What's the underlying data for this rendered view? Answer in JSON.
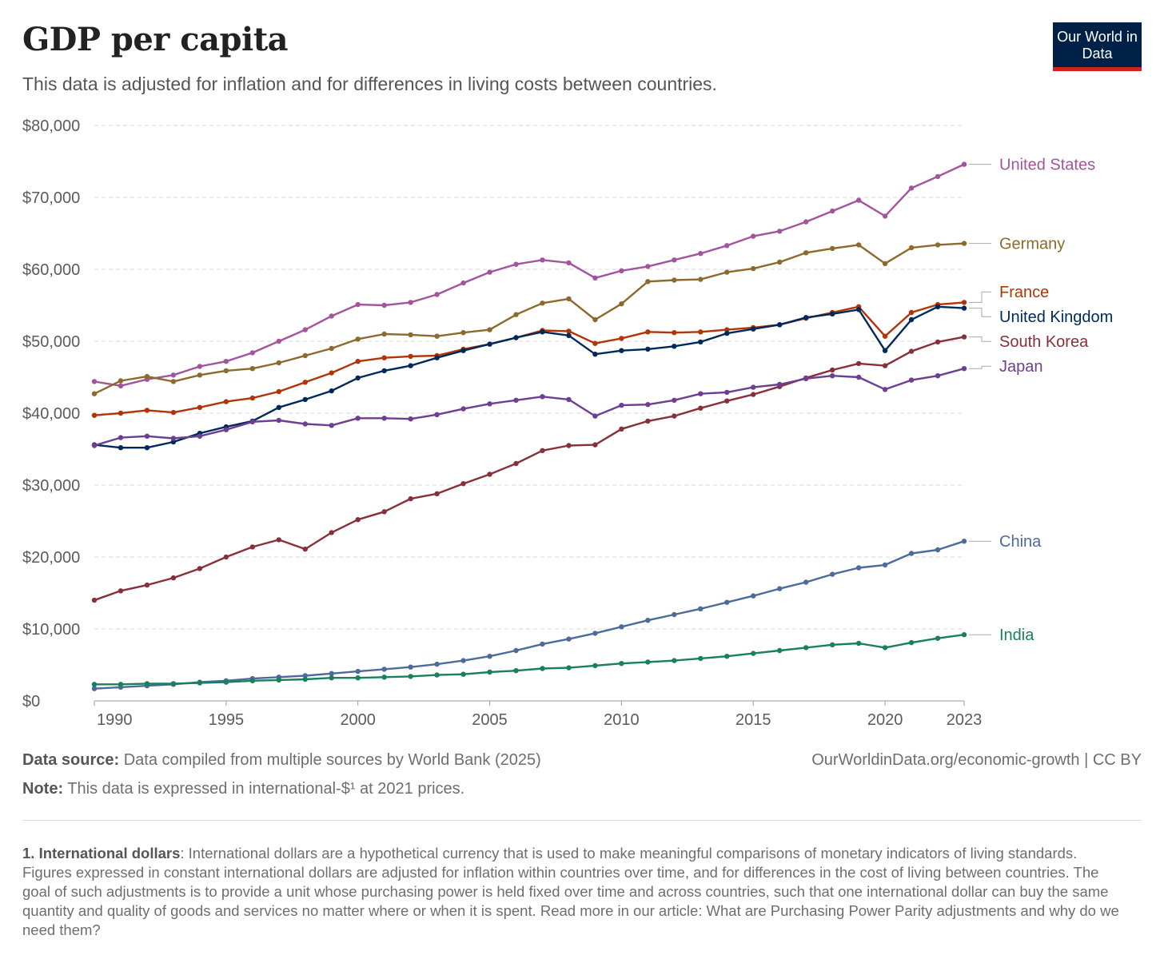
{
  "header": {
    "title": "GDP per capita",
    "subtitle": "This data is adjusted for inflation and for differences in living costs between countries.",
    "logo": "Our World in Data"
  },
  "footer": {
    "source_label": "Data source:",
    "source_text": " Data compiled from multiple sources by World Bank (2025)",
    "credit": "OurWorldinData.org/economic-growth | CC BY",
    "note_label": "Note:",
    "note_text": " This data is expressed in international-$¹ at 2021 prices.",
    "footnote_label": "1. International dollars",
    "footnote_text": ": International dollars are a hypothetical currency that is used to make meaningful comparisons of monetary indicators of living standards. Figures expressed in constant international dollars are adjusted for inflation within countries over time, and for differences in the cost of living between countries. The goal of such adjustments is to provide a unit whose purchasing power is held fixed over time and across countries, such that one international dollar can buy the same quantity and quality of goods and services no matter where or when it is spent. Read more in our article: What are Purchasing Power Parity adjustments and why do we need them?"
  },
  "chart_data": {
    "type": "line",
    "title": "GDP per capita",
    "xlim": [
      1990,
      2023
    ],
    "ylim": [
      0,
      80000
    ],
    "grid": true,
    "legend": "right-edge labels",
    "y_ticks": [
      {
        "value": 0,
        "label": "$0"
      },
      {
        "value": 10000,
        "label": "$10,000"
      },
      {
        "value": 20000,
        "label": "$20,000"
      },
      {
        "value": 30000,
        "label": "$30,000"
      },
      {
        "value": 40000,
        "label": "$40,000"
      },
      {
        "value": 50000,
        "label": "$50,000"
      },
      {
        "value": 60000,
        "label": "$60,000"
      },
      {
        "value": 70000,
        "label": "$70,000"
      },
      {
        "value": 80000,
        "label": "$80,000"
      }
    ],
    "x_ticks": [
      {
        "value": 1990,
        "label": "1990"
      },
      {
        "value": 1995,
        "label": "1995"
      },
      {
        "value": 2000,
        "label": "2000"
      },
      {
        "value": 2005,
        "label": "2005"
      },
      {
        "value": 2010,
        "label": "2010"
      },
      {
        "value": 2015,
        "label": "2015"
      },
      {
        "value": 2020,
        "label": "2020"
      },
      {
        "value": 2023,
        "label": "2023"
      }
    ],
    "x": [
      1990,
      1991,
      1992,
      1993,
      1994,
      1995,
      1996,
      1997,
      1998,
      1999,
      2000,
      2001,
      2002,
      2003,
      2004,
      2005,
      2006,
      2007,
      2008,
      2009,
      2010,
      2011,
      2012,
      2013,
      2014,
      2015,
      2016,
      2017,
      2018,
      2019,
      2020,
      2021,
      2022,
      2023
    ],
    "series": [
      {
        "name": "United States",
        "color": "#a2559c",
        "values": [
          44400,
          43800,
          44700,
          45300,
          46500,
          47200,
          48400,
          50000,
          51600,
          53500,
          55100,
          55000,
          55400,
          56500,
          58100,
          59600,
          60700,
          61300,
          60900,
          58800,
          59800,
          60400,
          61300,
          62200,
          63300,
          64600,
          65300,
          66600,
          68100,
          69600,
          67400,
          71300,
          72900,
          74600
        ]
      },
      {
        "name": "Germany",
        "color": "#8c6a2d",
        "values": [
          42700,
          44500,
          45100,
          44400,
          45300,
          45900,
          46200,
          47000,
          48000,
          49000,
          50300,
          51000,
          50900,
          50700,
          51200,
          51600,
          53700,
          55300,
          55900,
          53000,
          55200,
          58300,
          58500,
          58600,
          59600,
          60100,
          61000,
          62300,
          62900,
          63400,
          60800,
          63000,
          63400,
          63600
        ]
      },
      {
        "name": "France",
        "color": "#b13507",
        "values": [
          39700,
          40000,
          40400,
          40100,
          40800,
          41600,
          42100,
          43000,
          44300,
          45600,
          47200,
          47700,
          47900,
          48000,
          48900,
          49600,
          50500,
          51500,
          51400,
          49700,
          50400,
          51300,
          51200,
          51300,
          51600,
          51900,
          52300,
          53200,
          54000,
          54800,
          50700,
          54000,
          55100,
          55400
        ]
      },
      {
        "name": "United Kingdom",
        "color": "#00295b",
        "values": [
          35600,
          35200,
          35200,
          36000,
          37200,
          38100,
          38900,
          40800,
          41900,
          43100,
          44900,
          45900,
          46600,
          47700,
          48700,
          49600,
          50500,
          51300,
          50800,
          48200,
          48700,
          48900,
          49300,
          49900,
          51100,
          51700,
          52300,
          53300,
          53800,
          54400,
          48700,
          53000,
          54800,
          54600
        ]
      },
      {
        "name": "South Korea",
        "color": "#883039",
        "values": [
          14000,
          15300,
          16100,
          17100,
          18400,
          20000,
          21400,
          22400,
          21100,
          23400,
          25200,
          26300,
          28100,
          28800,
          30200,
          31500,
          33000,
          34800,
          35500,
          35600,
          37800,
          38900,
          39600,
          40700,
          41700,
          42600,
          43700,
          44900,
          46000,
          46900,
          46600,
          48600,
          49900,
          50600
        ]
      },
      {
        "name": "Japan",
        "color": "#6d3e91",
        "values": [
          35500,
          36600,
          36800,
          36500,
          36800,
          37700,
          38800,
          39000,
          38500,
          38300,
          39300,
          39300,
          39200,
          39800,
          40600,
          41300,
          41800,
          42300,
          41900,
          39600,
          41100,
          41200,
          41800,
          42700,
          42900,
          43600,
          44000,
          44800,
          45200,
          45000,
          43300,
          44600,
          45200,
          46200
        ]
      },
      {
        "name": "China",
        "color": "#4c6a9c",
        "values": [
          1700,
          1900,
          2100,
          2300,
          2600,
          2800,
          3100,
          3300,
          3500,
          3800,
          4100,
          4400,
          4700,
          5100,
          5600,
          6200,
          7000,
          7900,
          8600,
          9400,
          10300,
          11200,
          12000,
          12800,
          13700,
          14600,
          15600,
          16500,
          17600,
          18500,
          18900,
          20500,
          21000,
          22200
        ]
      },
      {
        "name": "India",
        "color": "#18805a",
        "values": [
          2300,
          2300,
          2400,
          2400,
          2500,
          2600,
          2800,
          2900,
          3000,
          3200,
          3200,
          3300,
          3400,
          3600,
          3700,
          4000,
          4200,
          4500,
          4600,
          4900,
          5200,
          5400,
          5600,
          5900,
          6200,
          6600,
          7000,
          7400,
          7800,
          8000,
          7400,
          8100,
          8700,
          9200
        ]
      }
    ]
  }
}
